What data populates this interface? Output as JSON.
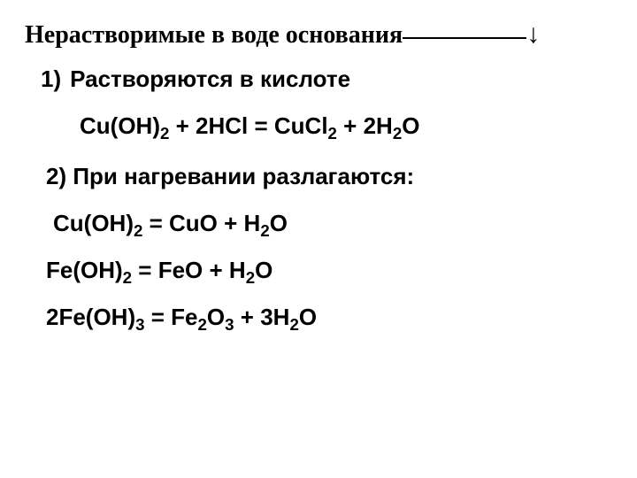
{
  "title": "Нерастворимые в воде основания",
  "arrow": "↓",
  "section1": {
    "num": "1)",
    "heading": "Растворяются в кислоте",
    "equation": "Cu(OH)₂ + 2HCl = CuCl₂ + 2H₂O"
  },
  "section2": {
    "heading": "2) При  нагревании разлагаются:",
    "eq1": "Cu(OH)₂ = CuO + H₂O",
    "eq2": "Fe(OH)₂ = FeO + H₂O",
    "eq3": "2Fe(OH)₃ = Fe₂O₃ + 3H₂O"
  },
  "colors": {
    "background": "#ffffff",
    "text": "#000000"
  },
  "typography": {
    "title_font": "Times New Roman",
    "body_font": "Arial",
    "title_size_pt": 21,
    "body_size_pt": 20,
    "weight": "bold"
  }
}
